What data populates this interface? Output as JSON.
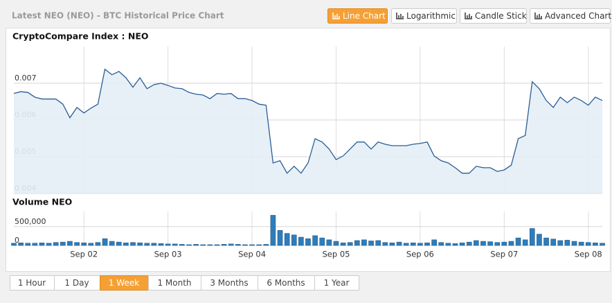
{
  "header": {
    "title": "Latest NEO (NEO) - BTC Historical Price Chart",
    "buttons": [
      "Line Chart",
      "Logarithmic",
      "Candle Stick",
      "Advanced Chart"
    ],
    "active": 0
  },
  "range_buttons": {
    "items": [
      "1 Hour",
      "1 Day",
      "1 Week",
      "1 Month",
      "3 Months",
      "6 Months",
      "1 Year"
    ],
    "active": 2
  },
  "chart_data": [
    {
      "type": "line",
      "title": "CryptoCompare Index : NEO",
      "color": "#2a5d94",
      "fill": "#e4edf6",
      "categories": [
        null,
        null,
        null,
        null,
        null,
        null,
        null,
        null,
        null,
        null,
        "Sep 02",
        null,
        null,
        null,
        null,
        null,
        null,
        null,
        null,
        null,
        null,
        null,
        "Sep 03",
        null,
        null,
        null,
        null,
        null,
        null,
        null,
        null,
        null,
        null,
        null,
        "Sep 04",
        null,
        null,
        null,
        null,
        null,
        null,
        null,
        null,
        null,
        null,
        null,
        "Sep 05",
        null,
        null,
        null,
        null,
        null,
        null,
        null,
        null,
        null,
        null,
        null,
        "Sep 06",
        null,
        null,
        null,
        null,
        null,
        null,
        null,
        null,
        null,
        null,
        null,
        "Sep 07",
        null,
        null,
        null,
        null,
        null,
        null,
        null,
        null,
        null,
        null,
        null,
        "Sep 08",
        null,
        null
      ],
      "values": [
        0.00672,
        0.00677,
        0.00675,
        0.00662,
        0.00657,
        0.00657,
        0.00657,
        0.00643,
        0.00606,
        0.00634,
        0.00619,
        0.00632,
        0.00643,
        0.00738,
        0.00723,
        0.00732,
        0.00715,
        0.00689,
        0.00715,
        0.00685,
        0.00696,
        0.007,
        0.00694,
        0.00687,
        0.00685,
        0.00675,
        0.0067,
        0.00668,
        0.00658,
        0.00672,
        0.0067,
        0.00672,
        0.00658,
        0.00658,
        0.00653,
        0.00643,
        0.0064,
        0.00483,
        0.00489,
        0.00455,
        0.00474,
        0.00455,
        0.00483,
        0.00549,
        0.0054,
        0.00521,
        0.00492,
        0.00502,
        0.00521,
        0.0054,
        0.0054,
        0.00521,
        0.0054,
        0.00534,
        0.0053,
        0.0053,
        0.0053,
        0.00534,
        0.00536,
        0.0054,
        0.00502,
        0.00489,
        0.00483,
        0.0047,
        0.00455,
        0.00455,
        0.00474,
        0.0047,
        0.0047,
        0.0046,
        0.00464,
        0.00477,
        0.00549,
        0.00558,
        0.00704,
        0.00685,
        0.00653,
        0.00634,
        0.00662,
        0.00647,
        0.00662,
        0.00653,
        0.0064,
        0.00662,
        0.00653
      ],
      "ylim": [
        0.004,
        0.008
      ],
      "yticks": [
        0.004,
        0.005,
        0.006,
        0.007
      ],
      "grid": true
    },
    {
      "type": "bar",
      "title": "Volume NEO",
      "color": "#2d7dbd",
      "categories": [
        null,
        null,
        null,
        null,
        null,
        null,
        null,
        null,
        null,
        null,
        "Sep 02",
        null,
        null,
        null,
        null,
        null,
        null,
        null,
        null,
        null,
        null,
        null,
        "Sep 03",
        null,
        null,
        null,
        null,
        null,
        null,
        null,
        null,
        null,
        null,
        null,
        "Sep 04",
        null,
        null,
        null,
        null,
        null,
        null,
        null,
        null,
        null,
        null,
        null,
        "Sep 05",
        null,
        null,
        null,
        null,
        null,
        null,
        null,
        null,
        null,
        null,
        null,
        "Sep 06",
        null,
        null,
        null,
        null,
        null,
        null,
        null,
        null,
        null,
        null,
        null,
        "Sep 07",
        null,
        null,
        null,
        null,
        null,
        null,
        null,
        null,
        null,
        null,
        null,
        "Sep 08",
        null,
        null
      ],
      "values": [
        60000,
        70000,
        60000,
        60000,
        70000,
        60000,
        80000,
        90000,
        110000,
        80000,
        70000,
        60000,
        80000,
        180000,
        110000,
        90000,
        70000,
        80000,
        70000,
        60000,
        60000,
        50000,
        40000,
        40000,
        30000,
        20000,
        30000,
        20000,
        20000,
        20000,
        30000,
        40000,
        30000,
        20000,
        20000,
        20000,
        30000,
        800000,
        400000,
        320000,
        280000,
        220000,
        180000,
        260000,
        200000,
        150000,
        110000,
        70000,
        80000,
        130000,
        150000,
        120000,
        130000,
        80000,
        70000,
        90000,
        60000,
        70000,
        60000,
        70000,
        150000,
        80000,
        60000,
        50000,
        70000,
        90000,
        130000,
        110000,
        100000,
        80000,
        90000,
        110000,
        200000,
        150000,
        450000,
        300000,
        200000,
        170000,
        130000,
        140000,
        110000,
        90000,
        80000,
        70000,
        60000
      ],
      "ylim": [
        0,
        900000
      ],
      "yticks": [
        0,
        {
          "value": 500000,
          "label": "500,000"
        }
      ],
      "grid": true
    }
  ]
}
